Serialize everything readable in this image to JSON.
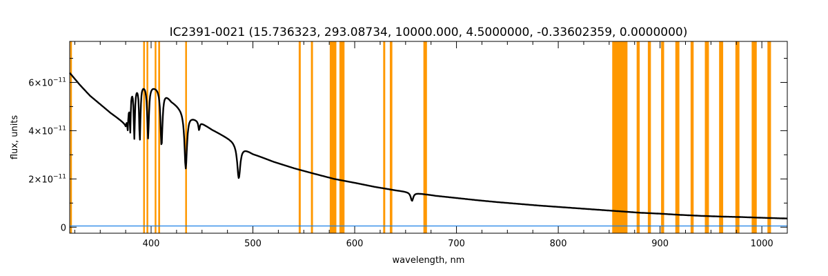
{
  "chart_data": {
    "type": "line",
    "title": "IC2391-0021   (15.736323, 293.08734, 10000.000, 4.5000000, -0.33602359, 0.0000000)",
    "xlabel": "wavelength, nm",
    "ylabel": "flux, units",
    "xlim": [
      320,
      1025
    ],
    "ylim": [
      -2.5e-12,
      7.7e-11
    ],
    "x_ticks": [
      400,
      500,
      600,
      700,
      800,
      900,
      1000
    ],
    "x_tick_labels": [
      "400",
      "500",
      "600",
      "700",
      "800",
      "900",
      "1000"
    ],
    "y_ticks": [
      0,
      2e-11,
      4e-11,
      6e-11
    ],
    "y_tick_labels": [
      {
        "base": "0",
        "exp": ""
      },
      {
        "base": "2×10",
        "exp": "−11"
      },
      {
        "base": "4×10",
        "exp": "−11"
      },
      {
        "base": "6×10",
        "exp": "−11"
      }
    ],
    "grid": false,
    "colors": {
      "flux": "#000000",
      "error": "#1a80e6",
      "mask": "#ff9800"
    },
    "masked_regions_nm": [
      [
        320.5,
        322
      ],
      [
        392.2,
        393.7
      ],
      [
        395.5,
        397.2
      ],
      [
        403.5,
        405
      ],
      [
        407,
        408.8
      ],
      [
        433.5,
        435.2
      ],
      [
        545,
        547
      ],
      [
        557,
        559
      ],
      [
        575.5,
        582
      ],
      [
        585,
        590
      ],
      [
        628,
        630
      ],
      [
        634.5,
        637
      ],
      [
        667.5,
        671
      ],
      [
        853,
        868
      ],
      [
        877,
        880
      ],
      [
        888,
        891
      ],
      [
        901,
        904
      ],
      [
        915,
        919
      ],
      [
        930,
        933
      ],
      [
        944,
        948
      ],
      [
        958,
        962
      ],
      [
        974,
        978
      ],
      [
        990,
        995
      ],
      [
        1005.5,
        1009
      ]
    ],
    "series": [
      {
        "role": "flux",
        "continuum_x": [
          320,
          330,
          340,
          350,
          360,
          370,
          375,
          380,
          390,
          400,
          410,
          420,
          440,
          460,
          480,
          500,
          520,
          540,
          560,
          580,
          600,
          620,
          640,
          660,
          680,
          700,
          720,
          740,
          760,
          780,
          800,
          820,
          840,
          860,
          880,
          900,
          920,
          940,
          960,
          980,
          1000,
          1025
        ],
        "continuum_y": [
          6.4e-11,
          5.9e-11,
          5.45e-11,
          5.1e-11,
          4.75e-11,
          4.45e-11,
          4.3e-11,
          5.8e-11,
          6e-11,
          5.9e-11,
          5.8e-11,
          5.25e-11,
          4.6e-11,
          4.05e-11,
          3.6e-11,
          3.05e-11,
          2.72e-11,
          2.45e-11,
          2.22e-11,
          2e-11,
          1.84e-11,
          1.67e-11,
          1.53e-11,
          1.42e-11,
          1.3e-11,
          1.21e-11,
          1.12e-11,
          1.04e-11,
          9.7e-12,
          9e-12,
          8.4e-12,
          7.8e-12,
          7.2e-12,
          6.6e-12,
          6e-12,
          5.6e-12,
          5.1e-12,
          4.7e-12,
          4.4e-12,
          4.2e-12,
          3.9e-12,
          3.6e-12
        ],
        "absorption_lines": [
          {
            "center": 377,
            "depth": 7.5e-12,
            "width": 0.6
          },
          {
            "center": 379.5,
            "depth": 1.6e-11,
            "width": 0.6
          },
          {
            "center": 383.5,
            "depth": 2.1e-11,
            "width": 0.7
          },
          {
            "center": 388.9,
            "depth": 2.3e-11,
            "width": 0.8
          },
          {
            "center": 397,
            "depth": 2.2e-11,
            "width": 1.0
          },
          {
            "center": 410.2,
            "depth": 2.4e-11,
            "width": 1.2
          },
          {
            "center": 434,
            "depth": 2.35e-11,
            "width": 1.5
          },
          {
            "center": 447.1,
            "depth": 3.5e-12,
            "width": 0.8
          },
          {
            "center": 486.1,
            "depth": 1.4e-11,
            "width": 1.8
          },
          {
            "center": 656.3,
            "depth": 3.5e-12,
            "width": 1.5
          }
        ]
      },
      {
        "role": "error",
        "x": [
          320,
          1025
        ],
        "y": [
          5e-13,
          5e-13
        ]
      }
    ]
  }
}
